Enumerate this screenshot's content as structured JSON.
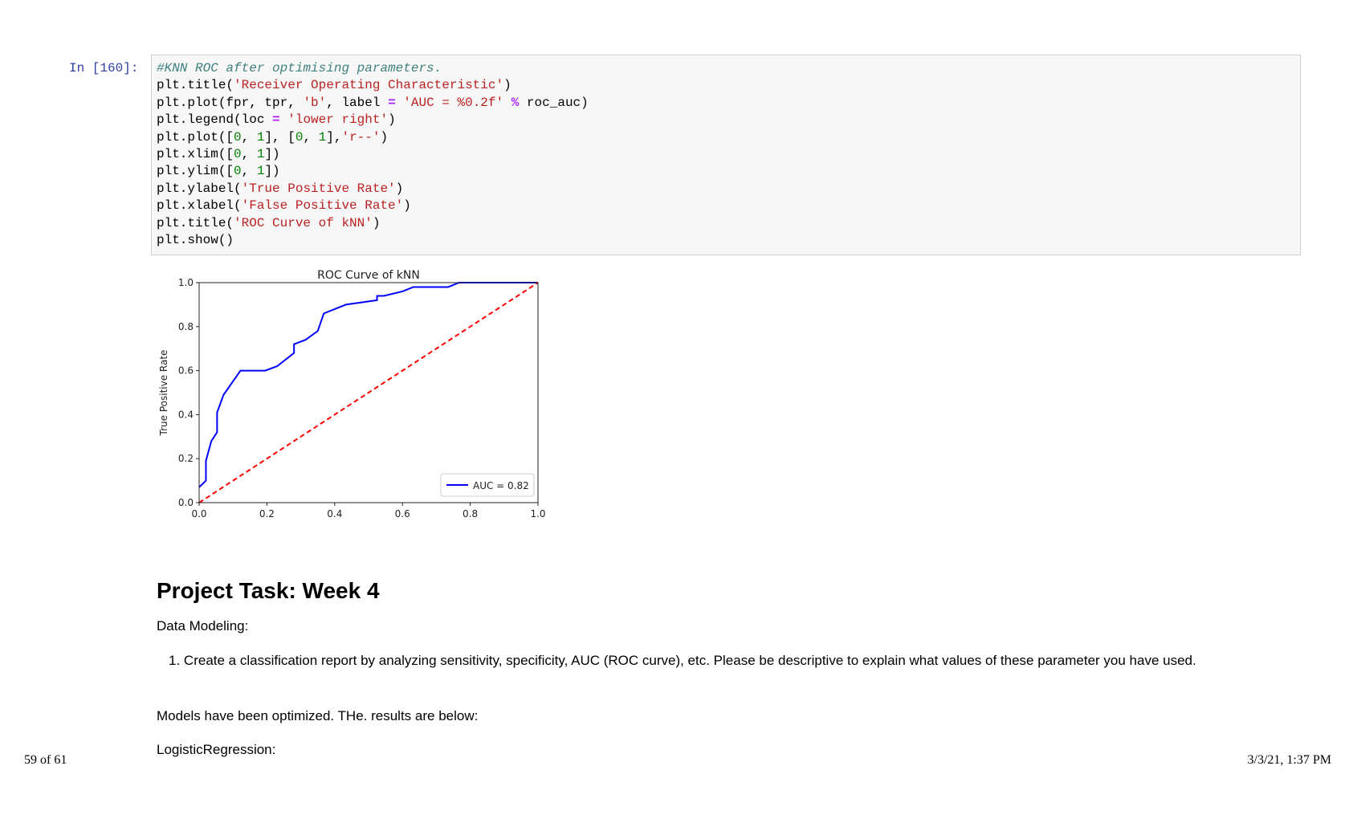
{
  "cell": {
    "prompt": "In [160]:",
    "lines": [
      [
        {
          "t": "#KNN ROC after optimising parameters.",
          "c": "cm"
        }
      ],
      [
        {
          "t": "plt.title("
        },
        {
          "t": "'Receiver Operating Characteristic'",
          "c": "st"
        },
        {
          "t": ")"
        }
      ],
      [
        {
          "t": "plt.plot(fpr, tpr, "
        },
        {
          "t": "'b'",
          "c": "st"
        },
        {
          "t": ", label "
        },
        {
          "t": "=",
          "c": "op"
        },
        {
          "t": " "
        },
        {
          "t": "'AUC = %0.2f'",
          "c": "st"
        },
        {
          "t": " "
        },
        {
          "t": "%",
          "c": "op"
        },
        {
          "t": " roc_auc)"
        }
      ],
      [
        {
          "t": "plt.legend(loc "
        },
        {
          "t": "=",
          "c": "op"
        },
        {
          "t": " "
        },
        {
          "t": "'lower right'",
          "c": "st"
        },
        {
          "t": ")"
        }
      ],
      [
        {
          "t": "plt.plot(["
        },
        {
          "t": "0",
          "c": "nu"
        },
        {
          "t": ", "
        },
        {
          "t": "1",
          "c": "nu"
        },
        {
          "t": "], ["
        },
        {
          "t": "0",
          "c": "nu"
        },
        {
          "t": ", "
        },
        {
          "t": "1",
          "c": "nu"
        },
        {
          "t": "],"
        },
        {
          "t": "'r--'",
          "c": "st"
        },
        {
          "t": ")"
        }
      ],
      [
        {
          "t": "plt.xlim(["
        },
        {
          "t": "0",
          "c": "nu"
        },
        {
          "t": ", "
        },
        {
          "t": "1",
          "c": "nu"
        },
        {
          "t": "])"
        }
      ],
      [
        {
          "t": "plt.ylim(["
        },
        {
          "t": "0",
          "c": "nu"
        },
        {
          "t": ", "
        },
        {
          "t": "1",
          "c": "nu"
        },
        {
          "t": "])"
        }
      ],
      [
        {
          "t": "plt.ylabel("
        },
        {
          "t": "'True Positive Rate'",
          "c": "st"
        },
        {
          "t": ")"
        }
      ],
      [
        {
          "t": "plt.xlabel("
        },
        {
          "t": "'False Positive Rate'",
          "c": "st"
        },
        {
          "t": ")"
        }
      ],
      [
        {
          "t": "plt.title("
        },
        {
          "t": "'ROC Curve of kNN'",
          "c": "st"
        },
        {
          "t": ")"
        }
      ],
      [
        {
          "t": "plt.show()"
        }
      ]
    ]
  },
  "chart_data": {
    "type": "line",
    "title": "ROC Curve of kNN",
    "xlabel": "False Positive Rate",
    "ylabel": "True Positive Rate",
    "xlim": [
      0,
      1
    ],
    "ylim": [
      0,
      1
    ],
    "xticks": [
      "0.0",
      "0.2",
      "0.4",
      "0.6",
      "0.8",
      "1.0"
    ],
    "yticks": [
      "0.0",
      "0.2",
      "0.4",
      "0.6",
      "0.8",
      "1.0"
    ],
    "grid": false,
    "legend_placement": "lower-right",
    "series": [
      {
        "name": "AUC = 0.82",
        "color": "#0000ff",
        "style": "solid",
        "x": [
          0,
          0.02,
          0.02,
          0.036,
          0.053,
          0.053,
          0.072,
          0.122,
          0.195,
          0.23,
          0.28,
          0.28,
          0.314,
          0.35,
          0.368,
          0.433,
          0.525,
          0.525,
          0.545,
          0.6,
          0.632,
          0.735,
          0.767,
          1.0
        ],
        "y": [
          0.07,
          0.1,
          0.19,
          0.28,
          0.32,
          0.41,
          0.49,
          0.6,
          0.6,
          0.62,
          0.68,
          0.72,
          0.74,
          0.78,
          0.86,
          0.9,
          0.92,
          0.94,
          0.94,
          0.96,
          0.98,
          0.98,
          1.0,
          1.0
        ]
      },
      {
        "color": "#ff0000",
        "style": "dashed",
        "x": [
          0,
          1
        ],
        "y": [
          0,
          1
        ]
      }
    ]
  },
  "doc": {
    "heading": "Project Task: Week 4",
    "subheading": "Data Modeling:",
    "list_item": "Create a classification report by analyzing sensitivity, specificity, AUC (ROC curve), etc. Please be descriptive to explain what values of these parameter you have used.",
    "list_number": "1.",
    "para1": "Models have been optimized. THe. results are below:",
    "para2": "LogisticRegression:"
  },
  "footer": {
    "page": "59 of 61",
    "datetime": "3/3/21, 1:37 PM"
  }
}
